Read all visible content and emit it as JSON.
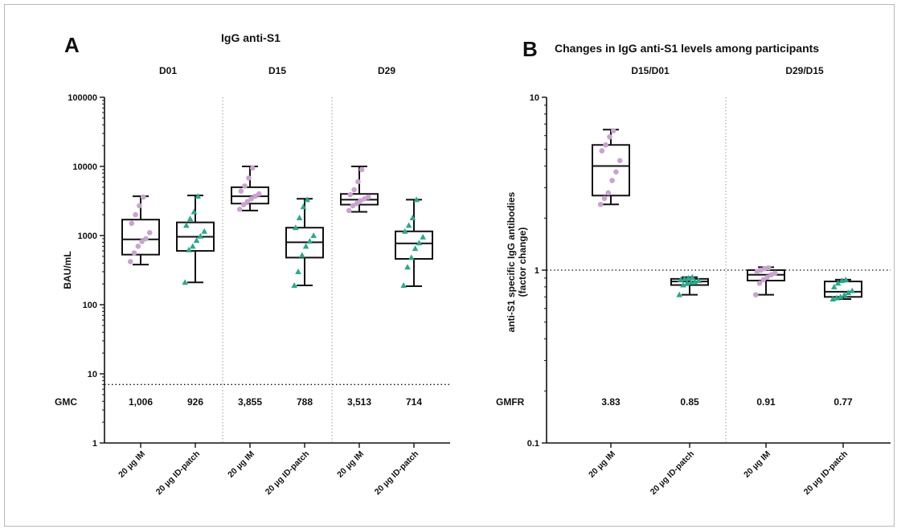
{
  "chart_data": [
    {
      "type": "box",
      "panel": "A",
      "title": "IgG anti-S1",
      "ylabel": "BAU/mL",
      "yscale": "log",
      "ylim": [
        1,
        100000
      ],
      "yticks": [
        "1",
        "10",
        "100",
        "1000",
        "10000",
        "100000"
      ],
      "reference_line": 7,
      "groups": [
        {
          "label": "D01",
          "categories": [
            "20 µg IM",
            "20 µg ID-patch"
          ]
        },
        {
          "label": "D15",
          "categories": [
            "20 µg IM",
            "20 µg ID-patch"
          ]
        },
        {
          "label": "D29",
          "categories": [
            "20 µg IM",
            "20 µg ID-patch"
          ]
        }
      ],
      "stat_name": "GMC",
      "stat_values": [
        "1,006",
        "926",
        "3,855",
        "788",
        "3,513",
        "714"
      ],
      "boxes": [
        {
          "group": "D01",
          "category": "20 µg IM",
          "min": 380,
          "q1": 530,
          "median": 880,
          "q3": 1700,
          "max": 3700,
          "color": "#c9a3cf",
          "marker": "circle",
          "points": [
            420,
            560,
            700,
            820,
            900,
            1100,
            1500,
            2000,
            2700,
            3600
          ]
        },
        {
          "group": "D01",
          "category": "20 µg ID-patch",
          "min": 210,
          "q1": 600,
          "median": 960,
          "q3": 1550,
          "max": 3800,
          "color": "#2aa98c",
          "marker": "triangle",
          "points": [
            210,
            620,
            700,
            850,
            980,
            1150,
            1400,
            1750,
            2200,
            3700
          ]
        },
        {
          "group": "D15",
          "category": "20 µg IM",
          "min": 2300,
          "q1": 2900,
          "median": 3700,
          "q3": 5000,
          "max": 10000,
          "color": "#c9a3cf",
          "marker": "circle",
          "points": [
            2400,
            2800,
            3100,
            3400,
            3700,
            4000,
            4400,
            5200,
            6800,
            9500
          ]
        },
        {
          "group": "D15",
          "category": "20 µg ID-patch",
          "min": 190,
          "q1": 480,
          "median": 800,
          "q3": 1300,
          "max": 3400,
          "color": "#2aa98c",
          "marker": "triangle",
          "points": [
            190,
            300,
            520,
            700,
            830,
            1000,
            1300,
            1800,
            2600,
            3300
          ]
        },
        {
          "group": "D29",
          "category": "20 µg IM",
          "min": 2200,
          "q1": 2800,
          "median": 3300,
          "q3": 4000,
          "max": 10000,
          "color": "#c9a3cf",
          "marker": "circle",
          "points": [
            2300,
            2700,
            2900,
            3200,
            3400,
            3600,
            3900,
            4600,
            6000,
            9000
          ]
        },
        {
          "group": "D29",
          "category": "20 µg ID-patch",
          "min": 185,
          "q1": 460,
          "median": 770,
          "q3": 1150,
          "max": 3300,
          "color": "#2aa98c",
          "marker": "triangle",
          "points": [
            190,
            350,
            480,
            650,
            780,
            950,
            1150,
            1400,
            1800,
            3300
          ]
        }
      ]
    },
    {
      "type": "box",
      "panel": "B",
      "title": "Changes in IgG anti-S1 levels among participants",
      "ylabel": "anti-S1 specific IgG antibodies",
      "ylabel2": "(factor change)",
      "yscale": "log",
      "ylim": [
        0.1,
        10
      ],
      "yticks": [
        "0.1",
        "1",
        "10"
      ],
      "reference_line": 1,
      "groups": [
        {
          "label": "D15/D01",
          "categories": [
            "20 µg IM",
            "20 µg ID-patch"
          ]
        },
        {
          "label": "D29/D15",
          "categories": [
            "20 µg IM",
            "20 µg ID-patch"
          ]
        }
      ],
      "stat_name": "GMFR",
      "stat_values": [
        "3.83",
        "0.85",
        "0.91",
        "0.77"
      ],
      "boxes": [
        {
          "group": "D15/D01",
          "category": "20 µg IM",
          "min": 2.4,
          "q1": 2.7,
          "median": 4.0,
          "q3": 5.3,
          "max": 6.5,
          "color": "#c9a3cf",
          "marker": "circle",
          "points": [
            2.4,
            2.6,
            2.8,
            3.3,
            3.7,
            4.3,
            4.9,
            5.3,
            5.9,
            6.4
          ]
        },
        {
          "group": "D15/D01",
          "category": "20 µg ID-patch",
          "min": 0.72,
          "q1": 0.82,
          "median": 0.86,
          "q3": 0.89,
          "max": 0.91,
          "color": "#2aa98c",
          "marker": "triangle",
          "points": [
            0.72,
            0.82,
            0.84,
            0.85,
            0.86,
            0.87,
            0.88,
            0.89,
            0.9,
            0.91
          ]
        },
        {
          "group": "D29/D15",
          "category": "20 µg IM",
          "min": 0.72,
          "q1": 0.87,
          "median": 0.94,
          "q3": 1.0,
          "max": 1.04,
          "color": "#c9a3cf",
          "marker": "circle",
          "points": [
            0.72,
            0.84,
            0.88,
            0.91,
            0.94,
            0.96,
            0.98,
            1.0,
            1.02,
            1.03
          ]
        },
        {
          "group": "D29/D15",
          "category": "20 µg ID-patch",
          "min": 0.68,
          "q1": 0.7,
          "median": 0.75,
          "q3": 0.86,
          "max": 0.88,
          "color": "#2aa98c",
          "marker": "triangle",
          "points": [
            0.68,
            0.69,
            0.7,
            0.72,
            0.74,
            0.76,
            0.8,
            0.84,
            0.87,
            0.88
          ]
        }
      ]
    }
  ]
}
